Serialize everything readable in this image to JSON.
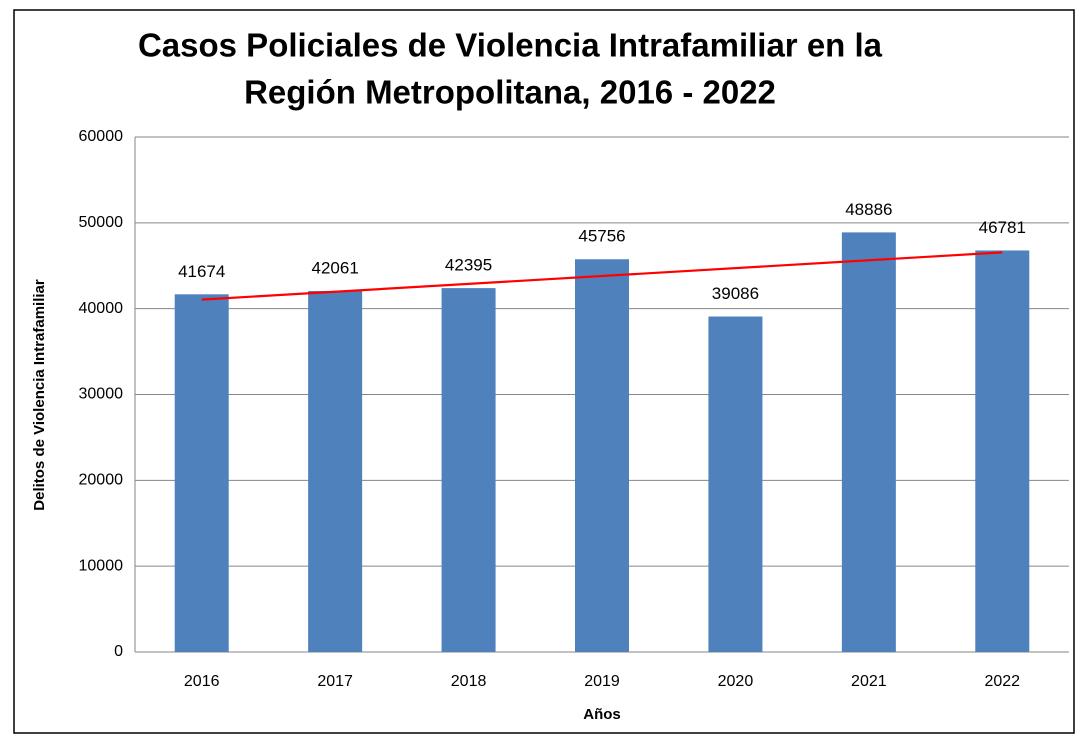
{
  "chart_data": {
    "type": "bar",
    "title": [
      "Casos Policiales de Violencia Intrafamiliar en la",
      "Región Metropolitana, 2016 - 2022"
    ],
    "x_label": "Años",
    "y_label": "Delitos de Violencia Intrafamiliar",
    "categories": [
      "2016",
      "2017",
      "2018",
      "2019",
      "2020",
      "2021",
      "2022"
    ],
    "values": [
      41674,
      42061,
      42395,
      45756,
      39086,
      48886,
      46781
    ],
    "color": "#4f81bd",
    "ylim": [
      0,
      60000
    ],
    "yticks": [
      0,
      10000,
      20000,
      30000,
      40000,
      50000,
      60000
    ],
    "grid": true,
    "trendline": "linear",
    "trendline_color": "#ff0000"
  }
}
